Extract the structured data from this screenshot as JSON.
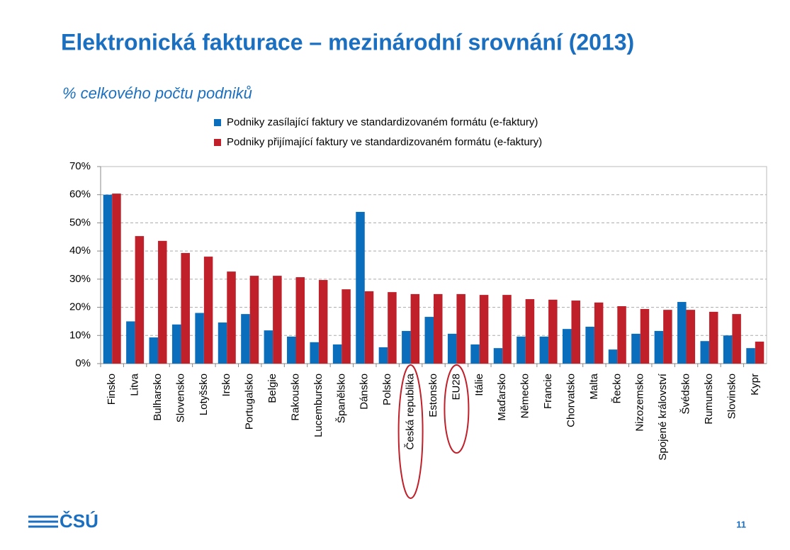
{
  "chart_data": {
    "type": "bar",
    "title": "Elektronická fakturace – mezinárodní srovnání (2013)",
    "subtitle": "% celkového počtu podniků",
    "categories": [
      "Finsko",
      "Litva",
      "Bulharsko",
      "Slovensko",
      "Lotyšsko",
      "Irsko",
      "Portugalsko",
      "Belgie",
      "Rakousko",
      "Lucembursko",
      "Španělsko",
      "Dánsko",
      "Polsko",
      "Česká republika",
      "Estonsko",
      "EU28",
      "Itálie",
      "Maďarsko",
      "Německo",
      "Francie",
      "Chorvatsko",
      "Malta",
      "Řecko",
      "Nizozemsko",
      "Spojené království",
      "Švédsko",
      "Rumunsko",
      "Slovinsko",
      "Kypr"
    ],
    "series": [
      {
        "name": "Podniky zasílající faktury ve standardizovaném formátu (e-faktury)",
        "color": "#0a6ebd",
        "values": [
          60,
          15,
          9.3,
          13.9,
          18,
          14.6,
          17.6,
          11.8,
          9.6,
          7.6,
          6.8,
          53.9,
          5.8,
          11.6,
          16.6,
          10.6,
          6.8,
          5.5,
          9.6,
          9.6,
          12.3,
          13.1,
          5,
          10.6,
          11.6,
          21.9,
          8,
          10,
          5.5
        ]
      },
      {
        "name": "Podniky přijímající faktury ve standardizovaném formátu (e-faktury)",
        "color": "#c0202a",
        "values": [
          60.4,
          45.3,
          43.6,
          39.3,
          38,
          32.7,
          31.2,
          31.2,
          30.7,
          29.7,
          26.4,
          25.7,
          25.4,
          24.7,
          24.7,
          24.7,
          24.4,
          24.4,
          22.9,
          22.7,
          22.4,
          21.7,
          20.4,
          19.4,
          19.1,
          19.1,
          18.4,
          17.6,
          7.8
        ]
      }
    ],
    "ylim": [
      0,
      70
    ],
    "yticks": [
      {
        "value": 0,
        "label": "0%"
      },
      {
        "value": 10,
        "label": "10%"
      },
      {
        "value": 20,
        "label": "20%"
      },
      {
        "value": 30,
        "label": "30%"
      },
      {
        "value": 40,
        "label": "40%"
      },
      {
        "value": 50,
        "label": "50%"
      },
      {
        "value": 60,
        "label": "60%"
      },
      {
        "value": 70,
        "label": "70%"
      }
    ],
    "grid": true,
    "legend": "top"
  },
  "logo": "ČSÚ",
  "page_number": "11"
}
